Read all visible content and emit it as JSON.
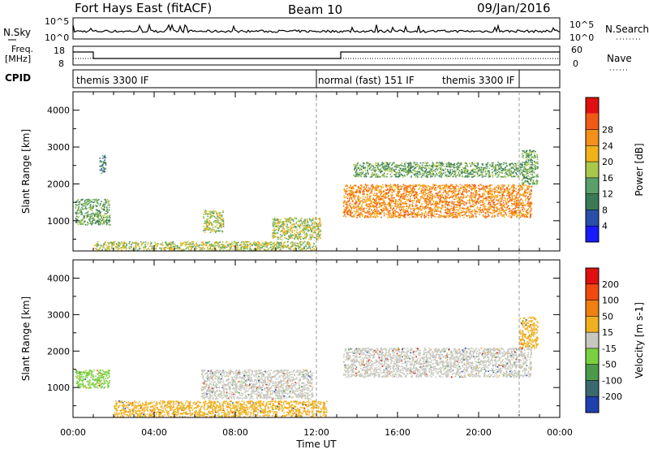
{
  "header": {
    "title": "Fort Hays East (fitACF)",
    "beam": "Beam 10",
    "date": "09/Jan/2016"
  },
  "side_labels": {
    "nsky": "N.Sky",
    "freq_line1": "Freq.",
    "freq_line2": "[MHz]",
    "cpid": "CPID",
    "nsearch": "N.Search",
    "nave": "Nave",
    "noise_left_top": "10^5",
    "noise_left_bot": "10^0",
    "noise_right_top": "10^5",
    "noise_right_bot": "10^0",
    "freq_top": "18",
    "freq_bot": "8",
    "nave_top": "60",
    "nave_bot": "0"
  },
  "cpid_segments": [
    {
      "label": "themis 3300 IF",
      "start_hour": 0,
      "end_hour": 12
    },
    {
      "label": "normal (fast) 151 IF",
      "start_hour": 12,
      "end_hour": 22
    },
    {
      "label": "themis 3300 IF",
      "start_hour": 22,
      "end_hour": 24
    }
  ],
  "axes": {
    "x_label": "Time UT",
    "x_ticks": [
      "00:00",
      "04:00",
      "08:00",
      "12:00",
      "16:00",
      "20:00",
      "00:00"
    ],
    "y_label": "Slant Range [km]",
    "y_ticks": [
      "1000",
      "2000",
      "3000",
      "4000"
    ],
    "y_tick_values": [
      1000,
      2000,
      3000,
      4000
    ],
    "y_range": [
      180,
      4500
    ],
    "x_range_hours": [
      0,
      24
    ]
  },
  "power_colorbar": {
    "label": "Power [dB]",
    "ticks": [
      "4",
      "8",
      "12",
      "16",
      "20",
      "24",
      "28"
    ],
    "colors": [
      "#1a1aff",
      "#2a4fa8",
      "#3a7a55",
      "#5aa06a",
      "#a8c84a",
      "#f2b21a",
      "#f5901a",
      "#f05a14",
      "#e01010"
    ]
  },
  "velocity_colorbar": {
    "label": "Velocity [m s-1]",
    "ticks": [
      "200",
      "100",
      "50",
      "15",
      "-15",
      "-50",
      "-100",
      "-200"
    ],
    "colors": [
      "#2040b0",
      "#3a6a70",
      "#4a9a4a",
      "#7cd040",
      "#c8c8c0",
      "#f0b020",
      "#f08010",
      "#f04a10",
      "#e01010"
    ]
  },
  "chart_data": {
    "type": "heatmap",
    "title": "Fort Hays East (fitACF)",
    "subtitle": "Beam 10 09/Jan/2016",
    "xlabel": "Time UT",
    "ylabel": "Slant Range [km]",
    "xlim_hours": [
      0,
      24
    ],
    "ylim_km": [
      180,
      4500
    ],
    "power_regions_db": [
      {
        "t_start": 0.1,
        "t_end": 1.8,
        "r_low": 900,
        "r_high": 1600,
        "value": 10
      },
      {
        "t_start": 1.3,
        "t_end": 1.6,
        "r_low": 2300,
        "r_high": 2800,
        "value": 8
      },
      {
        "t_start": 6.4,
        "t_end": 7.4,
        "r_low": 700,
        "r_high": 1300,
        "value": 14
      },
      {
        "t_start": 9.8,
        "t_end": 12.2,
        "r_low": 500,
        "r_high": 1100,
        "value": 14
      },
      {
        "t_start": 1.0,
        "t_end": 12.0,
        "r_low": 200,
        "r_high": 450,
        "value": 16
      },
      {
        "t_start": 13.3,
        "t_end": 22.6,
        "r_low": 1100,
        "r_high": 2000,
        "value": 22
      },
      {
        "t_start": 13.8,
        "t_end": 22.2,
        "r_low": 2200,
        "r_high": 2600,
        "value": 10
      },
      {
        "t_start": 22.1,
        "t_end": 22.9,
        "r_low": 2000,
        "r_high": 2950,
        "value": 12
      }
    ],
    "velocity_regions_ms": [
      {
        "t_start": 0.1,
        "t_end": 1.8,
        "r_low": 1000,
        "r_high": 1500,
        "value": 50
      },
      {
        "t_start": 13.3,
        "t_end": 22.6,
        "r_low": 1300,
        "r_high": 2100,
        "value": 0
      },
      {
        "t_start": 22.0,
        "t_end": 22.9,
        "r_low": 2100,
        "r_high": 2950,
        "value": -15
      },
      {
        "t_start": 6.3,
        "t_end": 11.8,
        "r_low": 700,
        "r_high": 1500,
        "value": 0
      },
      {
        "t_start": 2.0,
        "t_end": 12.5,
        "r_low": 200,
        "r_high": 650,
        "value": -30
      }
    ]
  }
}
